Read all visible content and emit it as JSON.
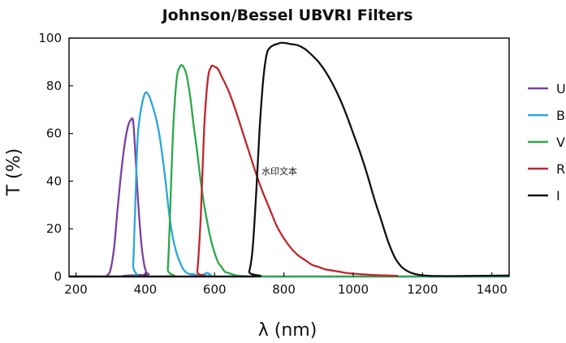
{
  "chart_data": {
    "type": "line",
    "title": "Johnson/Bessel UBVRI Filters",
    "xlabel": "λ (nm)",
    "ylabel": "T (%)",
    "xlim": [
      180,
      1450
    ],
    "ylim": [
      0,
      100
    ],
    "xticks": [
      200,
      400,
      600,
      800,
      1000,
      1200,
      1400
    ],
    "yticks": [
      0,
      20,
      40,
      60,
      80,
      100
    ],
    "grid": false,
    "legend_position": "right",
    "annotation": "水印文本",
    "series": [
      {
        "name": "U",
        "color": "#7b3fa0",
        "x": [
          180,
          280,
          290,
          300,
          310,
          320,
          330,
          340,
          350,
          360,
          365,
          370,
          380,
          390,
          400,
          410,
          420,
          1450
        ],
        "y": [
          0,
          0,
          0.5,
          3,
          12,
          28,
          43,
          55,
          63,
          66,
          65,
          55,
          30,
          12,
          3,
          1,
          0,
          0
        ]
      },
      {
        "name": "B",
        "color": "#2aa7dc",
        "x": [
          180,
          360,
          365,
          370,
          375,
          380,
          390,
          400,
          410,
          420,
          430,
          440,
          450,
          460,
          470,
          480,
          490,
          500,
          510,
          520,
          530,
          540,
          550,
          560,
          570,
          580,
          590,
          600,
          1450
        ],
        "y": [
          0,
          0,
          5,
          25,
          48,
          62,
          72,
          77,
          76,
          72,
          67,
          60,
          50,
          38,
          25,
          16,
          10,
          6,
          3,
          1.5,
          1,
          1,
          0.5,
          0.5,
          1,
          1.5,
          0.5,
          0,
          0
        ]
      },
      {
        "name": "V",
        "color": "#2aa84a",
        "x": [
          180,
          460,
          465,
          470,
          480,
          490,
          500,
          510,
          520,
          530,
          540,
          550,
          560,
          570,
          580,
          590,
          600,
          610,
          620,
          630,
          640,
          650,
          660,
          670,
          680,
          690,
          700,
          1450
        ],
        "y": [
          0,
          0,
          3,
          20,
          60,
          82,
          88,
          88,
          84,
          75,
          63,
          52,
          40,
          30,
          22,
          15,
          10,
          6,
          4,
          2,
          1.5,
          1,
          0.5,
          0.3,
          0.2,
          0.1,
          0,
          0
        ]
      },
      {
        "name": "R",
        "color": "#c0262d",
        "x": [
          180,
          540,
          550,
          560,
          570,
          580,
          590,
          600,
          610,
          620,
          640,
          660,
          680,
          700,
          720,
          740,
          760,
          780,
          800,
          820,
          840,
          860,
          880,
          900,
          920,
          940,
          960,
          980,
          1000,
          1020,
          1040,
          1060,
          1080,
          1100,
          1130
        ],
        "y": [
          0,
          0,
          2,
          25,
          62,
          82,
          88,
          88,
          87,
          84,
          78,
          70,
          61,
          52,
          43,
          35,
          28,
          21,
          16,
          12,
          9,
          7,
          5,
          4,
          3,
          2.5,
          2,
          1.5,
          1.2,
          1,
          0.8,
          0.6,
          0.5,
          0.4,
          0.3
        ]
      },
      {
        "name": "I",
        "color": "#111111",
        "x": [
          180,
          690,
          700,
          710,
          720,
          730,
          740,
          750,
          760,
          770,
          780,
          790,
          800,
          820,
          840,
          860,
          880,
          900,
          920,
          940,
          960,
          980,
          1000,
          1020,
          1040,
          1060,
          1080,
          1100,
          1120,
          1140,
          1160,
          1180,
          1200,
          1220,
          1250,
          1300,
          1350,
          1450
        ],
        "y": [
          0,
          0,
          2,
          12,
          35,
          62,
          82,
          93,
          96,
          97,
          97.5,
          98,
          98,
          97.5,
          97,
          95.5,
          93,
          90,
          86,
          81,
          75,
          68,
          60,
          52,
          43,
          33,
          24,
          15,
          8,
          4,
          2,
          1,
          0.5,
          0.3,
          0.2,
          0.2,
          0.3,
          0.4
        ]
      }
    ]
  }
}
